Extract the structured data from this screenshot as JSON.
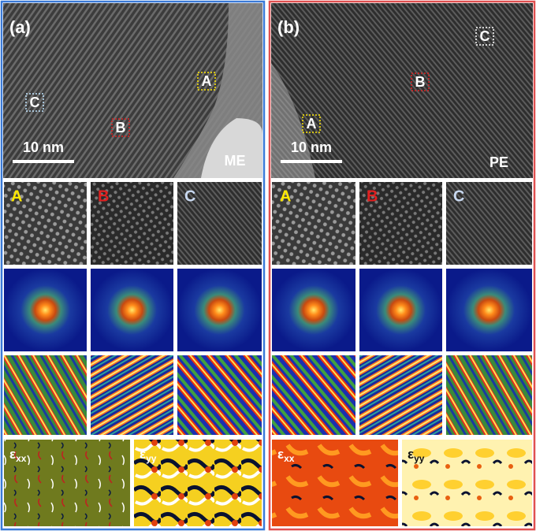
{
  "panels": [
    {
      "label": "(a)",
      "markers": [
        "A",
        "B",
        "C"
      ],
      "scale_bar": "10 nm",
      "method": "ME",
      "crops": [
        "A",
        "B",
        "C"
      ],
      "strain": [
        {
          "symbol": "ε",
          "sub": "xx"
        },
        {
          "symbol": "ε",
          "sub": "yy"
        }
      ]
    },
    {
      "label": "(b)",
      "markers": [
        "A",
        "B",
        "C"
      ],
      "scale_bar": "10 nm",
      "method": "PE",
      "crops": [
        "A",
        "B",
        "C"
      ],
      "strain": [
        {
          "symbol": "ε",
          "sub": "xx"
        },
        {
          "symbol": "ε",
          "sub": "yy"
        }
      ]
    }
  ]
}
